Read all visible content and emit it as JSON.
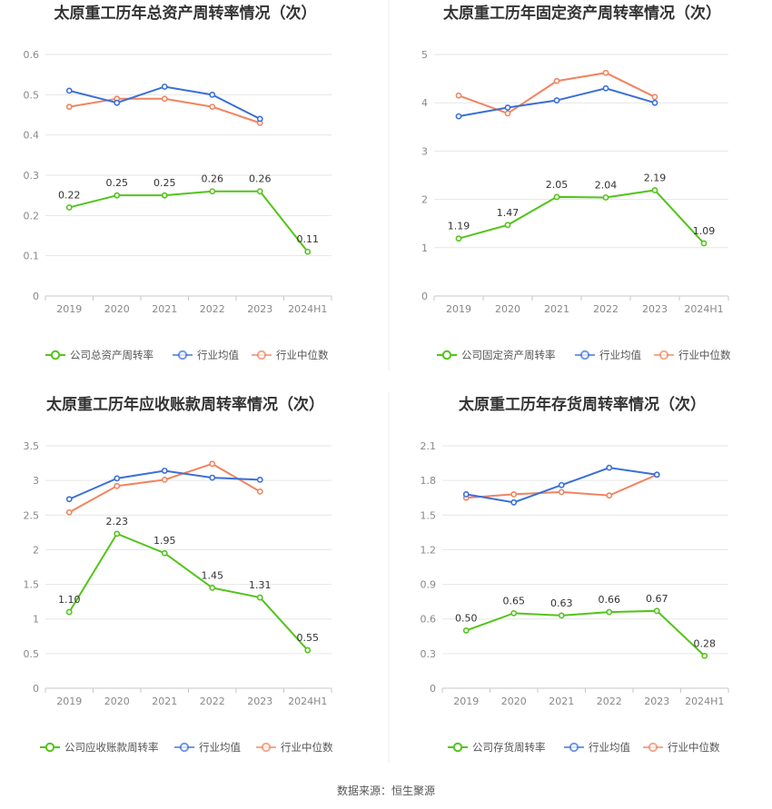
{
  "source_label": "数据来源：恒生聚源",
  "colors": {
    "company": "#52c41a",
    "avg": "#3a6fd8",
    "median": "#f0845f"
  },
  "chart_data": [
    {
      "type": "line",
      "title": "太原重工历年总资产周转率情况（次）",
      "categories": [
        "2019",
        "2020",
        "2021",
        "2022",
        "2023",
        "2024H1"
      ],
      "ylim": [
        0,
        0.6
      ],
      "yticks": [
        "0",
        "0.1",
        "0.2",
        "0.3",
        "0.4",
        "0.5",
        "0.6"
      ],
      "grid": true,
      "legend": "bottom",
      "series": [
        {
          "name": "公司总资产周转率",
          "role": "company",
          "values": [
            0.22,
            0.25,
            0.25,
            0.26,
            0.26,
            0.11
          ],
          "labels": [
            "0.22",
            "0.25",
            "0.25",
            "0.26",
            "0.26",
            "0.11"
          ]
        },
        {
          "name": "行业均值",
          "role": "avg",
          "values": [
            0.51,
            0.48,
            0.52,
            0.5,
            0.44,
            null
          ]
        },
        {
          "name": "行业中位数",
          "role": "median",
          "values": [
            0.47,
            0.49,
            0.49,
            0.47,
            0.43,
            null
          ]
        }
      ]
    },
    {
      "type": "line",
      "title": "太原重工历年固定资产周转率情况（次）",
      "categories": [
        "2019",
        "2020",
        "2021",
        "2022",
        "2023",
        "2024H1"
      ],
      "ylim": [
        0,
        5
      ],
      "yticks": [
        "0",
        "1",
        "2",
        "3",
        "4",
        "5"
      ],
      "grid": true,
      "legend": "bottom",
      "series": [
        {
          "name": "公司固定资产周转率",
          "role": "company",
          "values": [
            1.19,
            1.47,
            2.05,
            2.04,
            2.19,
            1.09
          ],
          "labels": [
            "1.19",
            "1.47",
            "2.05",
            "2.04",
            "2.19",
            "1.09"
          ]
        },
        {
          "name": "行业均值",
          "role": "avg",
          "values": [
            3.72,
            3.9,
            4.05,
            4.3,
            4.0,
            null
          ]
        },
        {
          "name": "行业中位数",
          "role": "median",
          "values": [
            4.15,
            3.78,
            4.45,
            4.62,
            4.12,
            null
          ]
        }
      ]
    },
    {
      "type": "line",
      "title": "太原重工历年应收账款周转率情况（次）",
      "categories": [
        "2019",
        "2020",
        "2021",
        "2022",
        "2023",
        "2024H1"
      ],
      "ylim": [
        0,
        3.5
      ],
      "yticks": [
        "0",
        "0.5",
        "1",
        "1.5",
        "2",
        "2.5",
        "3",
        "3.5"
      ],
      "grid": true,
      "legend": "bottom",
      "series": [
        {
          "name": "公司应收账款周转率",
          "role": "company",
          "values": [
            1.1,
            2.23,
            1.95,
            1.45,
            1.31,
            0.55
          ],
          "labels": [
            "1.10",
            "2.23",
            "1.95",
            "1.45",
            "1.31",
            "0.55"
          ]
        },
        {
          "name": "行业均值",
          "role": "avg",
          "values": [
            2.73,
            3.03,
            3.14,
            3.04,
            3.01,
            null
          ]
        },
        {
          "name": "行业中位数",
          "role": "median",
          "values": [
            2.54,
            2.92,
            3.01,
            3.24,
            2.84,
            null
          ]
        }
      ]
    },
    {
      "type": "line",
      "title": "太原重工历年存货周转率情况（次）",
      "categories": [
        "2019",
        "2020",
        "2021",
        "2022",
        "2023",
        "2024H1"
      ],
      "ylim": [
        0,
        2.1
      ],
      "yticks": [
        "0",
        "0.3",
        "0.6",
        "0.9",
        "1.2",
        "1.5",
        "1.8",
        "2.1"
      ],
      "grid": true,
      "legend": "bottom",
      "series": [
        {
          "name": "公司存货周转率",
          "role": "company",
          "values": [
            0.5,
            0.65,
            0.63,
            0.66,
            0.67,
            0.28
          ],
          "labels": [
            "0.50",
            "0.65",
            "0.63",
            "0.66",
            "0.67",
            "0.28"
          ]
        },
        {
          "name": "行业均值",
          "role": "avg",
          "values": [
            1.68,
            1.61,
            1.76,
            1.91,
            1.85,
            null
          ]
        },
        {
          "name": "行业中位数",
          "role": "median",
          "values": [
            1.65,
            1.68,
            1.7,
            1.67,
            1.85,
            null
          ]
        }
      ]
    }
  ]
}
